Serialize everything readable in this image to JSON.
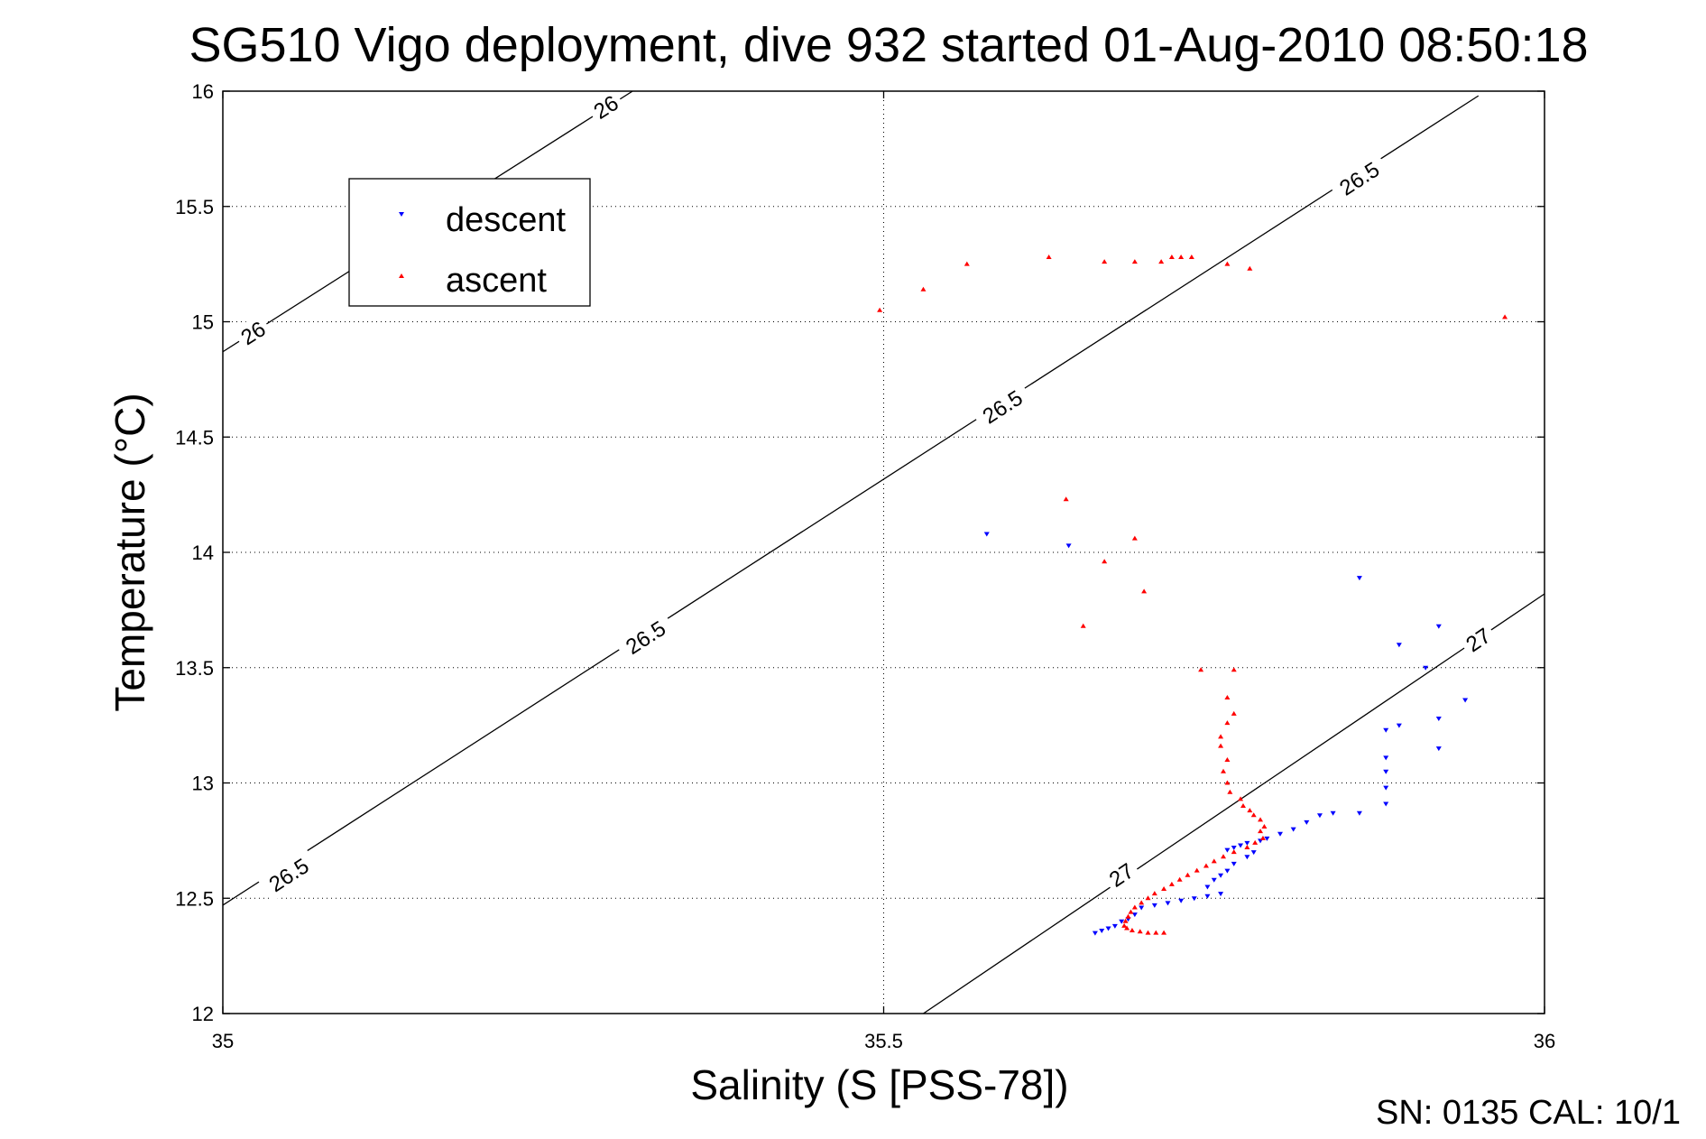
{
  "chart_data": {
    "type": "scatter",
    "title": "SG510 Vigo deployment, dive 932 started 01-Aug-2010 08:50:18",
    "xlabel": "Salinity (S [PSS-78])",
    "ylabel": "Temperature (°C)",
    "xlim": [
      35,
      36
    ],
    "ylim": [
      12,
      16
    ],
    "xticks": [
      "35",
      "35.5",
      "36"
    ],
    "yticks": [
      "12",
      "12.5",
      "13",
      "13.5",
      "14",
      "14.5",
      "15",
      "15.5",
      "16"
    ],
    "grid": "dotted",
    "legend_position": "top-left",
    "footer": "SN: 0135  CAL: 10/1",
    "contours": [
      {
        "label": "26",
        "x": [
          35.0,
          35.31
        ],
        "y": [
          14.87,
          16.0
        ],
        "labels_at": [
          [
            35.023,
            14.95
          ],
          [
            35.29,
            15.93
          ]
        ]
      },
      {
        "label": "26.5",
        "x": [
          35.0,
          35.95
        ],
        "y": [
          12.47,
          15.98
        ],
        "labels_at": [
          [
            35.05,
            12.6
          ],
          [
            35.32,
            13.63
          ],
          [
            35.59,
            14.63
          ],
          [
            35.86,
            15.62
          ]
        ]
      },
      {
        "label": "27",
        "x": [
          35.53,
          36.0
        ],
        "y": [
          12.0,
          13.82
        ],
        "labels_at": [
          [
            35.68,
            12.6
          ],
          [
            35.95,
            13.62
          ]
        ]
      }
    ],
    "series": [
      {
        "name": "descent",
        "color": "#0000ff",
        "marker": "triangle-down",
        "points": [
          [
            35.578,
            14.08
          ],
          [
            35.64,
            14.03
          ],
          [
            35.86,
            13.89
          ],
          [
            35.92,
            13.68
          ],
          [
            35.89,
            13.6
          ],
          [
            35.91,
            13.5
          ],
          [
            35.94,
            13.36
          ],
          [
            35.92,
            13.28
          ],
          [
            35.89,
            13.25
          ],
          [
            35.88,
            13.23
          ],
          [
            35.92,
            13.15
          ],
          [
            35.88,
            13.11
          ],
          [
            35.88,
            13.05
          ],
          [
            35.88,
            12.98
          ],
          [
            35.88,
            12.91
          ],
          [
            35.86,
            12.87
          ],
          [
            35.84,
            12.87
          ],
          [
            35.83,
            12.86
          ],
          [
            35.82,
            12.83
          ],
          [
            35.81,
            12.8
          ],
          [
            35.8,
            12.78
          ],
          [
            35.79,
            12.76
          ],
          [
            35.785,
            12.75
          ],
          [
            35.775,
            12.74
          ],
          [
            35.77,
            12.73
          ],
          [
            35.765,
            12.72
          ],
          [
            35.76,
            12.71
          ],
          [
            35.78,
            12.7
          ],
          [
            35.775,
            12.68
          ],
          [
            35.765,
            12.65
          ],
          [
            35.76,
            12.62
          ],
          [
            35.755,
            12.6
          ],
          [
            35.75,
            12.58
          ],
          [
            35.745,
            12.55
          ],
          [
            35.755,
            12.52
          ],
          [
            35.745,
            12.51
          ],
          [
            35.735,
            12.5
          ],
          [
            35.725,
            12.49
          ],
          [
            35.715,
            12.48
          ],
          [
            35.705,
            12.47
          ],
          [
            35.695,
            12.46
          ],
          [
            35.69,
            12.43
          ],
          [
            35.685,
            12.41
          ],
          [
            35.68,
            12.4
          ],
          [
            35.675,
            12.38
          ],
          [
            35.67,
            12.37
          ],
          [
            35.665,
            12.36
          ],
          [
            35.66,
            12.35
          ]
        ]
      },
      {
        "name": "ascent",
        "color": "#ff0000",
        "marker": "triangle-up",
        "points": [
          [
            35.497,
            15.05
          ],
          [
            35.53,
            15.14
          ],
          [
            35.563,
            15.25
          ],
          [
            35.625,
            15.28
          ],
          [
            35.667,
            15.26
          ],
          [
            35.69,
            15.26
          ],
          [
            35.71,
            15.26
          ],
          [
            35.718,
            15.28
          ],
          [
            35.725,
            15.28
          ],
          [
            35.733,
            15.28
          ],
          [
            35.76,
            15.25
          ],
          [
            35.777,
            15.23
          ],
          [
            35.97,
            15.02
          ],
          [
            35.638,
            14.23
          ],
          [
            35.69,
            14.06
          ],
          [
            35.667,
            13.96
          ],
          [
            35.697,
            13.83
          ],
          [
            35.651,
            13.68
          ],
          [
            35.74,
            13.49
          ],
          [
            35.765,
            13.49
          ],
          [
            35.76,
            13.37
          ],
          [
            35.765,
            13.3
          ],
          [
            35.76,
            13.26
          ],
          [
            35.755,
            13.2
          ],
          [
            35.755,
            13.16
          ],
          [
            35.76,
            13.1
          ],
          [
            35.757,
            13.05
          ],
          [
            35.76,
            13.0
          ],
          [
            35.762,
            12.96
          ],
          [
            35.77,
            12.93
          ],
          [
            35.772,
            12.9
          ],
          [
            35.777,
            12.88
          ],
          [
            35.78,
            12.86
          ],
          [
            35.785,
            12.84
          ],
          [
            35.788,
            12.81
          ],
          [
            35.785,
            12.79
          ],
          [
            35.787,
            12.76
          ],
          [
            35.781,
            12.74
          ],
          [
            35.775,
            12.72
          ],
          [
            35.765,
            12.7
          ],
          [
            35.757,
            12.68
          ],
          [
            35.75,
            12.66
          ],
          [
            35.744,
            12.64
          ],
          [
            35.737,
            12.62
          ],
          [
            35.73,
            12.6
          ],
          [
            35.724,
            12.58
          ],
          [
            35.718,
            12.56
          ],
          [
            35.712,
            12.54
          ],
          [
            35.705,
            12.52
          ],
          [
            35.7,
            12.5
          ],
          [
            35.695,
            12.48
          ],
          [
            35.69,
            12.46
          ],
          [
            35.687,
            12.44
          ],
          [
            35.685,
            12.42
          ],
          [
            35.683,
            12.4
          ],
          [
            35.682,
            12.38
          ],
          [
            35.684,
            12.37
          ],
          [
            35.688,
            12.36
          ],
          [
            35.694,
            12.355
          ],
          [
            35.7,
            12.35
          ],
          [
            35.706,
            12.35
          ],
          [
            35.712,
            12.35
          ]
        ]
      }
    ]
  }
}
